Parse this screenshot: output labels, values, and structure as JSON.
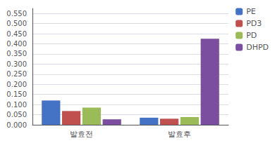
{
  "chart_data": {
    "type": "bar",
    "categories": [
      "발효전",
      "발효후"
    ],
    "series": [
      {
        "name": "PE",
        "color": "#4472C4",
        "values": [
          0.12,
          0.035
        ]
      },
      {
        "name": "PD3",
        "color": "#C0504D",
        "values": [
          0.068,
          0.03
        ]
      },
      {
        "name": "PD",
        "color": "#9BBB59",
        "values": [
          0.085,
          0.038
        ]
      },
      {
        "name": "DHPD",
        "color": "#7B4EA0",
        "values": [
          0.027,
          0.425
        ]
      }
    ],
    "ylim": [
      0.0,
      0.575
    ],
    "yticks": [
      {
        "value": 0.0,
        "label": "0.000"
      },
      {
        "value": 0.05,
        "label": "0.050"
      },
      {
        "value": 0.1,
        "label": "0.100"
      },
      {
        "value": 0.15,
        "label": "0.150"
      },
      {
        "value": 0.2,
        "label": "0.200"
      },
      {
        "value": 0.25,
        "label": "0.250"
      },
      {
        "value": 0.3,
        "label": "0.300"
      },
      {
        "value": 0.35,
        "label": "0.350"
      },
      {
        "value": 0.4,
        "label": "0.400"
      },
      {
        "value": 0.45,
        "label": "0.450"
      },
      {
        "value": 0.5,
        "label": "0.500"
      },
      {
        "value": 0.55,
        "label": "0.550"
      }
    ],
    "grid": true,
    "legend": "upper right"
  }
}
